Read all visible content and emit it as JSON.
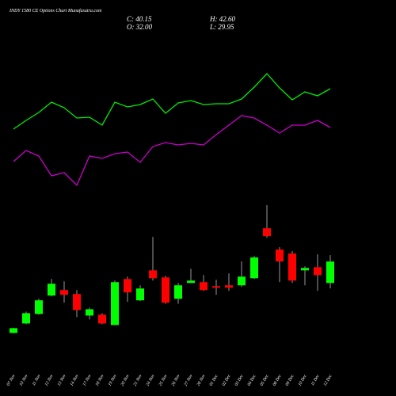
{
  "chart_data": {
    "type": "candlestick",
    "title": "INDY 1580 CE Options Chart Munafasutra.com",
    "ohlc_text": {
      "close": "C: 40.15",
      "high": "H: 42.60",
      "open": "O: 32.00",
      "low": "L: 29.95"
    },
    "categories": [
      "07 Nov",
      "10 Nov",
      "11 Nov",
      "12 Nov",
      "13 Nov",
      "14 Nov",
      "17 Nov",
      "18 Nov",
      "19 Nov",
      "20 Nov",
      "21 Nov",
      "24 Nov",
      "25 Nov",
      "26 Nov",
      "27 Nov",
      "28 Nov",
      "01 Dec",
      "02 Dec",
      "03 Dec",
      "04 Dec",
      "05 Dec",
      "08 Dec",
      "09 Dec",
      "10 Dec",
      "11 Dec",
      "12 Dec"
    ],
    "open": [
      13.0,
      16.6,
      20.2,
      27.2,
      29.3,
      27.8,
      19.6,
      19.9,
      16.0,
      33.5,
      25.4,
      36.8,
      34.1,
      26.0,
      32.0,
      32.3,
      30.8,
      31.1,
      31.1,
      33.8,
      52.8,
      44.7,
      43.2,
      36.8,
      38.0,
      32.0
    ],
    "high": [
      15.0,
      21.1,
      26.0,
      33.5,
      32.6,
      29.3,
      22.6,
      20.5,
      32.9,
      34.4,
      31.1,
      49.5,
      34.7,
      32.0,
      37.4,
      35.0,
      33.2,
      35.6,
      40.2,
      42.3,
      61.6,
      45.6,
      44.1,
      38.3,
      42.9,
      42.6
    ],
    "low": [
      12.8,
      16.3,
      19.9,
      26.9,
      24.5,
      19.0,
      18.1,
      16.3,
      16.0,
      24.8,
      25.1,
      32.9,
      24.1,
      24.1,
      32.0,
      29.0,
      27.5,
      29.0,
      30.5,
      33.5,
      49.2,
      32.3,
      32.0,
      31.1,
      29.0,
      29.95
    ],
    "close": [
      14.8,
      20.5,
      25.4,
      31.7,
      27.5,
      21.7,
      22.0,
      16.6,
      32.3,
      28.4,
      29.9,
      33.8,
      24.5,
      31.1,
      32.9,
      29.3,
      30.2,
      30.2,
      34.4,
      41.7,
      49.8,
      40.2,
      32.9,
      37.7,
      35.0,
      40.15
    ],
    "up_color": "#00ff00",
    "down_color": "#ff0000",
    "lines": [
      {
        "color": "#00ee00",
        "values": [
          337,
          348,
          358,
          371,
          364,
          351,
          352,
          342,
          371,
          365,
          368,
          375,
          357,
          370,
          373,
          368,
          369,
          369,
          375,
          390,
          407,
          389,
          374,
          384,
          379,
          388
        ]
      },
      {
        "color": "#cc00cc",
        "values": [
          296,
          310,
          303,
          278,
          282,
          266,
          303,
          300,
          306,
          308,
          295,
          315,
          320,
          317,
          319,
          317,
          330,
          342,
          354,
          351,
          342,
          332,
          342,
          342,
          348,
          339
        ]
      }
    ]
  }
}
